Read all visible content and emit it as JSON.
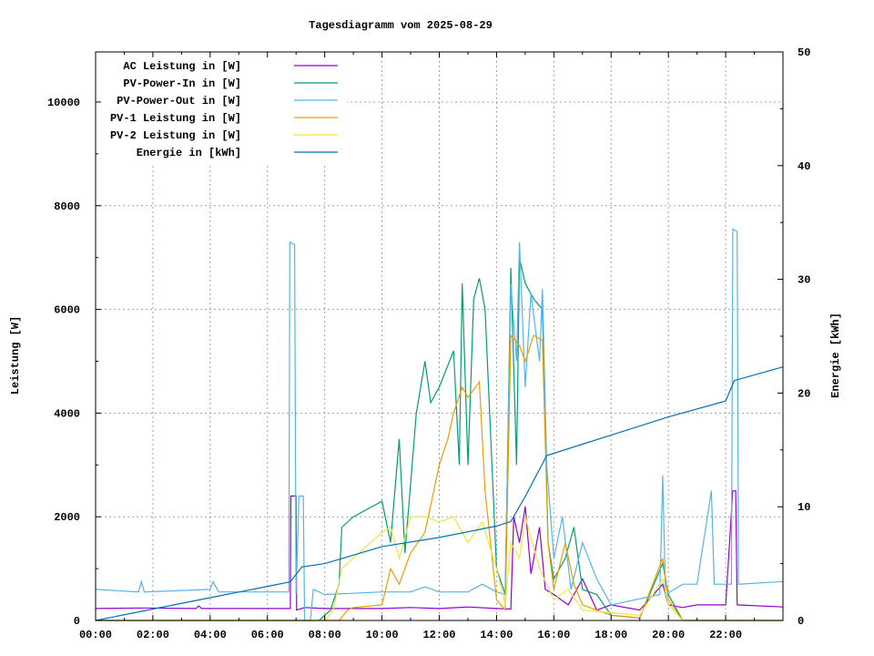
{
  "chart_data": {
    "type": "line",
    "title": "Tagesdiagramm vom 2025-08-29",
    "xlabel": "",
    "ylabel": "Leistung [W]",
    "y2label": "Energie [kWh]",
    "xlim": [
      0,
      24
    ],
    "ylim": [
      0,
      10966
    ],
    "y2lim": [
      0,
      50
    ],
    "grid": true,
    "legend_position": "top-left",
    "x_ticks": [
      {
        "value": 0,
        "label": "00:00"
      },
      {
        "value": 2,
        "label": "02:00"
      },
      {
        "value": 4,
        "label": "04:00"
      },
      {
        "value": 6,
        "label": "06:00"
      },
      {
        "value": 8,
        "label": "08:00"
      },
      {
        "value": 10,
        "label": "10:00"
      },
      {
        "value": 12,
        "label": "12:00"
      },
      {
        "value": 14,
        "label": "14:00"
      },
      {
        "value": 16,
        "label": "16:00"
      },
      {
        "value": 18,
        "label": "18:00"
      },
      {
        "value": 20,
        "label": "20:00"
      },
      {
        "value": 22,
        "label": "22:00"
      }
    ],
    "y_ticks": [
      {
        "value": 0,
        "label": "0"
      },
      {
        "value": 2000,
        "label": "2000"
      },
      {
        "value": 4000,
        "label": "4000"
      },
      {
        "value": 6000,
        "label": "6000"
      },
      {
        "value": 8000,
        "label": "8000"
      },
      {
        "value": 10000,
        "label": "10000"
      }
    ],
    "y2_ticks": [
      {
        "value": 0,
        "label": "0"
      },
      {
        "value": 10,
        "label": "10"
      },
      {
        "value": 20,
        "label": "20"
      },
      {
        "value": 30,
        "label": "30"
      },
      {
        "value": 40,
        "label": "40"
      },
      {
        "value": 50,
        "label": "50"
      }
    ],
    "series": [
      {
        "name": "AC Leistung in [W]",
        "color": "#9400d3",
        "axis": "y",
        "points": [
          [
            0,
            230
          ],
          [
            1.7,
            240
          ],
          [
            3.5,
            230
          ],
          [
            3.6,
            280
          ],
          [
            3.7,
            230
          ],
          [
            6.8,
            230
          ],
          [
            6.82,
            2400
          ],
          [
            7.0,
            2400
          ],
          [
            7.02,
            200
          ],
          [
            7.3,
            250
          ],
          [
            8,
            230
          ],
          [
            10,
            230
          ],
          [
            11,
            250
          ],
          [
            12,
            230
          ],
          [
            13,
            260
          ],
          [
            14,
            230
          ],
          [
            14.5,
            220
          ],
          [
            14.6,
            2000
          ],
          [
            14.8,
            1500
          ],
          [
            15,
            2200
          ],
          [
            15.2,
            900
          ],
          [
            15.5,
            1800
          ],
          [
            15.7,
            600
          ],
          [
            16,
            500
          ],
          [
            16.5,
            300
          ],
          [
            17,
            800
          ],
          [
            17.5,
            200
          ],
          [
            18,
            300
          ],
          [
            19,
            200
          ],
          [
            19.8,
            700
          ],
          [
            20,
            300
          ],
          [
            20.5,
            250
          ],
          [
            21,
            300
          ],
          [
            22,
            300
          ],
          [
            22.25,
            2500
          ],
          [
            22.35,
            2500
          ],
          [
            22.4,
            300
          ],
          [
            24,
            260
          ]
        ]
      },
      {
        "name": "PV-Power-In in [W]",
        "color": "#009e73",
        "axis": "y",
        "points": [
          [
            0,
            0
          ],
          [
            7.8,
            0
          ],
          [
            8.2,
            200
          ],
          [
            8.5,
            700
          ],
          [
            8.6,
            1800
          ],
          [
            9,
            2000
          ],
          [
            10,
            2300
          ],
          [
            10.3,
            1500
          ],
          [
            10.6,
            3500
          ],
          [
            10.8,
            1300
          ],
          [
            11.2,
            4000
          ],
          [
            11.5,
            5000
          ],
          [
            11.7,
            4200
          ],
          [
            12,
            4500
          ],
          [
            12.5,
            5200
          ],
          [
            12.7,
            3000
          ],
          [
            12.8,
            6500
          ],
          [
            13,
            3000
          ],
          [
            13.2,
            6200
          ],
          [
            13.4,
            6600
          ],
          [
            13.6,
            6000
          ],
          [
            14,
            1000
          ],
          [
            14.3,
            500
          ],
          [
            14.5,
            6800
          ],
          [
            14.7,
            3000
          ],
          [
            14.8,
            7000
          ],
          [
            15,
            6500
          ],
          [
            15.3,
            6200
          ],
          [
            15.6,
            6000
          ],
          [
            15.8,
            1500
          ],
          [
            16,
            800
          ],
          [
            16.4,
            1200
          ],
          [
            16.7,
            1800
          ],
          [
            17,
            600
          ],
          [
            17.5,
            500
          ],
          [
            18,
            100
          ],
          [
            19,
            50
          ],
          [
            19.8,
            1100
          ],
          [
            20,
            500
          ],
          [
            20.5,
            0
          ],
          [
            24,
            0
          ]
        ]
      },
      {
        "name": "PV-Power-Out in [W]",
        "color": "#56b4e9",
        "axis": "y",
        "points": [
          [
            0,
            600
          ],
          [
            1.5,
            550
          ],
          [
            1.6,
            750
          ],
          [
            1.7,
            550
          ],
          [
            4,
            600
          ],
          [
            4.1,
            750
          ],
          [
            4.3,
            550
          ],
          [
            6.75,
            550
          ],
          [
            6.78,
            7300
          ],
          [
            6.95,
            7250
          ],
          [
            7.0,
            500
          ],
          [
            7.1,
            2400
          ],
          [
            7.25,
            2400
          ],
          [
            7.3,
            0
          ],
          [
            7.5,
            0
          ],
          [
            7.6,
            600
          ],
          [
            8,
            500
          ],
          [
            10,
            550
          ],
          [
            11,
            550
          ],
          [
            11.5,
            650
          ],
          [
            12,
            550
          ],
          [
            13,
            550
          ],
          [
            13.5,
            700
          ],
          [
            14,
            550
          ],
          [
            14.3,
            500
          ],
          [
            14.5,
            6500
          ],
          [
            14.7,
            5000
          ],
          [
            14.8,
            7300
          ],
          [
            15,
            4500
          ],
          [
            15.2,
            6300
          ],
          [
            15.5,
            5000
          ],
          [
            15.6,
            6400
          ],
          [
            15.75,
            3000
          ],
          [
            16,
            1200
          ],
          [
            16.3,
            2000
          ],
          [
            16.6,
            600
          ],
          [
            17,
            1500
          ],
          [
            17.5,
            800
          ],
          [
            18,
            300
          ],
          [
            19.7,
            500
          ],
          [
            19.8,
            2800
          ],
          [
            19.9,
            500
          ],
          [
            20.5,
            700
          ],
          [
            21,
            700
          ],
          [
            21.5,
            2500
          ],
          [
            21.6,
            700
          ],
          [
            22.2,
            700
          ],
          [
            22.25,
            7550
          ],
          [
            22.4,
            7500
          ],
          [
            22.45,
            700
          ],
          [
            24,
            750
          ]
        ]
      },
      {
        "name": "PV-1 Leistung in [W]",
        "color": "#e69f00",
        "axis": "y",
        "points": [
          [
            0,
            0
          ],
          [
            8.5,
            0
          ],
          [
            8.8,
            200
          ],
          [
            9,
            250
          ],
          [
            10,
            300
          ],
          [
            10.3,
            1000
          ],
          [
            10.6,
            700
          ],
          [
            11,
            1300
          ],
          [
            11.5,
            1700
          ],
          [
            12,
            3000
          ],
          [
            12.3,
            3500
          ],
          [
            12.5,
            4000
          ],
          [
            12.8,
            4500
          ],
          [
            13,
            4300
          ],
          [
            13.4,
            4600
          ],
          [
            13.6,
            2500
          ],
          [
            14,
            400
          ],
          [
            14.3,
            200
          ],
          [
            14.5,
            5500
          ],
          [
            14.8,
            5300
          ],
          [
            15,
            5000
          ],
          [
            15.3,
            5500
          ],
          [
            15.6,
            5400
          ],
          [
            15.8,
            1500
          ],
          [
            16,
            600
          ],
          [
            16.4,
            1500
          ],
          [
            16.7,
            700
          ],
          [
            17,
            300
          ],
          [
            18,
            100
          ],
          [
            19,
            50
          ],
          [
            19.8,
            1200
          ],
          [
            20,
            400
          ],
          [
            20.5,
            0
          ],
          [
            24,
            0
          ]
        ]
      },
      {
        "name": "PV-2 Leistung in [W]",
        "color": "#f0e442",
        "axis": "y",
        "points": [
          [
            0,
            0
          ],
          [
            8,
            0
          ],
          [
            8.3,
            200
          ],
          [
            8.6,
            1000
          ],
          [
            9,
            1200
          ],
          [
            10,
            1700
          ],
          [
            10.3,
            1800
          ],
          [
            10.6,
            1200
          ],
          [
            11,
            2000
          ],
          [
            11.5,
            2000
          ],
          [
            12,
            1900
          ],
          [
            12.5,
            2000
          ],
          [
            13,
            1500
          ],
          [
            13.5,
            1900
          ],
          [
            14,
            1000
          ],
          [
            14.3,
            300
          ],
          [
            14.5,
            1500
          ],
          [
            14.8,
            1200
          ],
          [
            15,
            2000
          ],
          [
            15.5,
            1000
          ],
          [
            16,
            400
          ],
          [
            16.5,
            600
          ],
          [
            17,
            200
          ],
          [
            18,
            150
          ],
          [
            19,
            100
          ],
          [
            19.8,
            800
          ],
          [
            20,
            300
          ],
          [
            20.5,
            0
          ],
          [
            24,
            0
          ]
        ]
      },
      {
        "name": "Energie in [kWh]",
        "color": "#0072b2",
        "axis": "y2",
        "points": [
          [
            0,
            0
          ],
          [
            2,
            1.0
          ],
          [
            4,
            2.0
          ],
          [
            6,
            3.0
          ],
          [
            6.8,
            3.4
          ],
          [
            7.2,
            4.7
          ],
          [
            8,
            5.0
          ],
          [
            10,
            6.5
          ],
          [
            12,
            7.3
          ],
          [
            14,
            8.3
          ],
          [
            14.5,
            8.7
          ],
          [
            15,
            10.9
          ],
          [
            15.75,
            14.5
          ],
          [
            16,
            14.7
          ],
          [
            18,
            16.3
          ],
          [
            20,
            17.9
          ],
          [
            22,
            19.3
          ],
          [
            22.3,
            21.1
          ],
          [
            24,
            22.3
          ]
        ]
      }
    ]
  }
}
